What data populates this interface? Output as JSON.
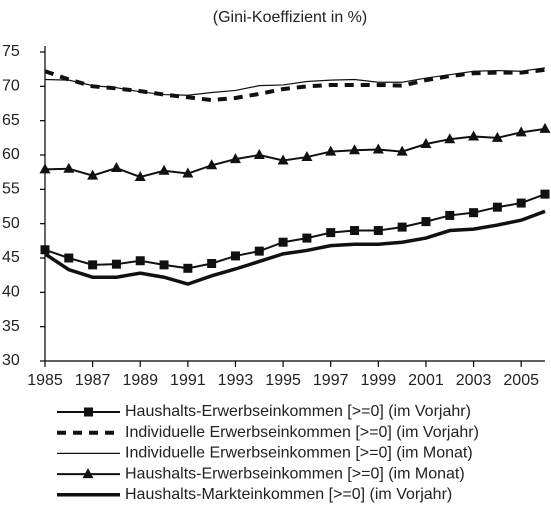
{
  "chart_data": {
    "type": "line",
    "title": "(Gini-Koeffizient in %)",
    "x": [
      1985,
      1986,
      1987,
      1988,
      1989,
      1990,
      1991,
      1992,
      1993,
      1994,
      1995,
      1996,
      1997,
      1998,
      1999,
      2000,
      2001,
      2002,
      2003,
      2004,
      2005,
      2006
    ],
    "xlim": [
      1985,
      2006
    ],
    "xticks": [
      1985,
      1987,
      1989,
      1991,
      1993,
      1995,
      1997,
      1999,
      2001,
      2003,
      2005
    ],
    "ylim": [
      30,
      75
    ],
    "yticks": [
      30,
      35,
      40,
      45,
      50,
      55,
      60,
      65,
      70,
      75
    ],
    "series": [
      {
        "name": "Haushalts-Erwerbseinkommen [>=0] (im Vorjahr)",
        "color": "#111111",
        "line": "normal",
        "marker": "square",
        "values": [
          46.2,
          45.0,
          44.0,
          44.1,
          44.6,
          44.0,
          43.5,
          44.2,
          45.3,
          46.0,
          47.3,
          47.9,
          48.7,
          49.0,
          49.0,
          49.5,
          50.3,
          51.2,
          51.6,
          52.4,
          53.0,
          54.3
        ]
      },
      {
        "name": "Individuelle Erwerbseinkommen [>=0] (im Vorjahr)",
        "color": "#111111",
        "line": "dashed",
        "marker": "none",
        "values": [
          72.2,
          71.0,
          70.0,
          69.7,
          69.3,
          68.8,
          68.4,
          68.0,
          68.3,
          68.9,
          69.6,
          70.0,
          70.2,
          70.2,
          70.2,
          70.1,
          70.9,
          71.5,
          71.9,
          72.0,
          72.0,
          72.4
        ]
      },
      {
        "name": "Individuelle Erwerbseinkommen [>=0] (im Monat)",
        "color": "#111111",
        "line": "thin",
        "marker": "none",
        "values": [
          71.0,
          70.9,
          70.1,
          69.8,
          69.2,
          68.8,
          68.7,
          69.1,
          69.4,
          70.1,
          70.2,
          70.7,
          70.9,
          71.0,
          70.6,
          70.6,
          71.2,
          71.7,
          72.2,
          72.3,
          72.2,
          72.7
        ]
      },
      {
        "name": "Haushalts-Erwerbseinkommen [>=0] (im Monat)",
        "color": "#111111",
        "line": "normal",
        "marker": "triangle",
        "values": [
          57.9,
          58.0,
          57.0,
          58.1,
          56.8,
          57.7,
          57.3,
          58.5,
          59.4,
          60.0,
          59.2,
          59.7,
          60.5,
          60.7,
          60.8,
          60.5,
          61.6,
          62.3,
          62.7,
          62.5,
          63.3,
          63.8
        ]
      },
      {
        "name": "Haushalts-Markteinkommen [>=0] (im Vorjahr)",
        "color": "#111111",
        "line": "thick",
        "marker": "none",
        "values": [
          45.6,
          43.3,
          42.2,
          42.2,
          42.8,
          42.2,
          41.2,
          42.4,
          43.4,
          44.5,
          45.6,
          46.1,
          46.8,
          47.0,
          47.0,
          47.3,
          47.9,
          49.0,
          49.2,
          49.8,
          50.5,
          51.8
        ]
      }
    ]
  }
}
